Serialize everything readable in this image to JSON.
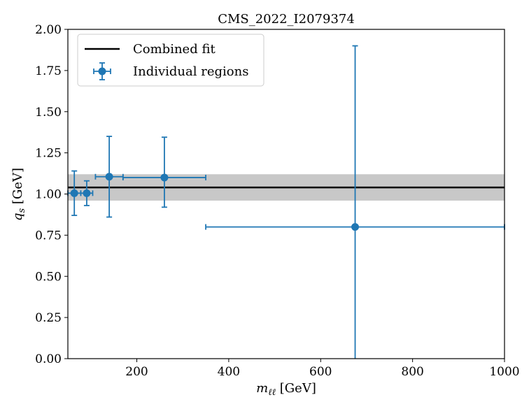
{
  "chart_data": {
    "type": "scatter",
    "title": "CMS_2022_I2079374",
    "xlabel": "m_ℓℓ [GeV]",
    "ylabel": "q_s [GeV]",
    "xlim": [
      50,
      1000
    ],
    "ylim": [
      0,
      2.0
    ],
    "x_ticks": [
      200,
      400,
      600,
      800,
      1000
    ],
    "y_ticks": [
      0.0,
      0.25,
      0.5,
      0.75,
      1.0,
      1.25,
      1.5,
      1.75,
      2.0
    ],
    "x_tick_labels": [
      "200",
      "400",
      "600",
      "800",
      "1000"
    ],
    "y_tick_labels": [
      "0.00",
      "0.25",
      "0.50",
      "0.75",
      "1.00",
      "1.25",
      "1.50",
      "1.75",
      "2.00"
    ],
    "grid": false,
    "legend_position": "top-left",
    "combined_fit": {
      "name": "Combined fit",
      "value": 1.04,
      "band": [
        0.96,
        1.12
      ],
      "color": "#000000",
      "band_color": "#c8c8c8"
    },
    "series": [
      {
        "name": "Individual regions",
        "color": "#1f77b4",
        "points": [
          {
            "x": 64,
            "xerr": [
              14,
              14
            ],
            "y": 1.005,
            "yerr": [
              0.135,
              0.135
            ]
          },
          {
            "x": 91,
            "xerr": [
              13,
              13
            ],
            "y": 1.005,
            "yerr": [
              0.075,
              0.075
            ]
          },
          {
            "x": 140,
            "xerr": [
              30,
              30
            ],
            "y": 1.105,
            "yerr": [
              0.245,
              0.245
            ]
          },
          {
            "x": 260,
            "xerr": [
              90,
              90
            ],
            "y": 1.1,
            "yerr": [
              0.18,
              0.245
            ]
          },
          {
            "x": 675,
            "xerr": [
              325,
              325
            ],
            "y": 0.8,
            "yerr": [
              0.8,
              1.1
            ]
          }
        ]
      }
    ]
  }
}
